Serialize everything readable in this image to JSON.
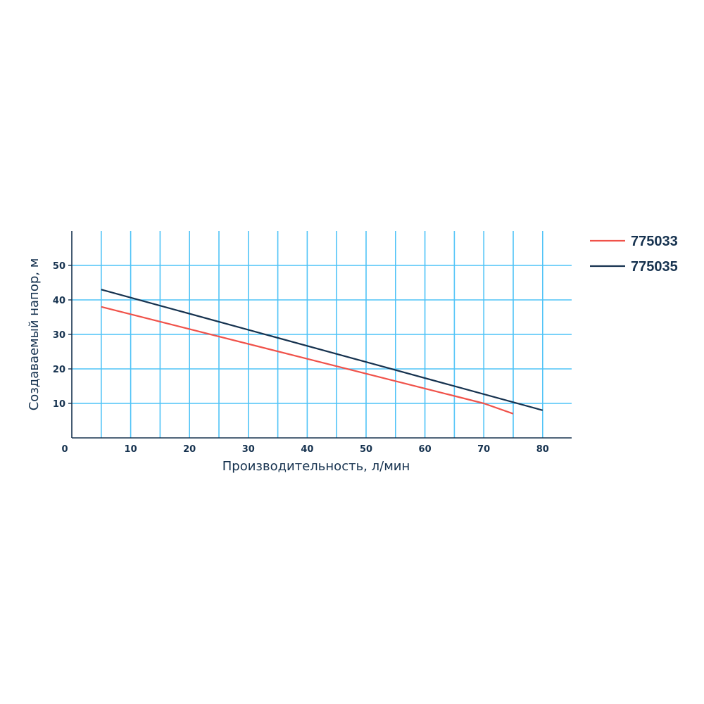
{
  "chart_data": {
    "type": "line",
    "xlabel": "Производительность, л/мин",
    "ylabel": "Создаваемый напор, м",
    "xlim": [
      0,
      85
    ],
    "ylim": [
      0,
      60
    ],
    "origin_label": "0",
    "x_ticks": [
      10,
      20,
      30,
      40,
      50,
      60,
      70,
      80
    ],
    "x_tick_labels": [
      "10",
      "20",
      "30",
      "40",
      "50",
      "60",
      "70",
      "80"
    ],
    "y_ticks": [
      10,
      20,
      30,
      40,
      50
    ],
    "y_tick_labels": [
      "10",
      "20",
      "30",
      "40",
      "50"
    ],
    "x_grid": [
      5,
      10,
      15,
      20,
      25,
      30,
      35,
      40,
      45,
      50,
      55,
      60,
      65,
      70,
      75,
      80
    ],
    "grid": true,
    "grid_color": "#4fc3f7",
    "axis_color": "#16324f",
    "legend_position": "top-right",
    "series": [
      {
        "name": "775033",
        "color": "#f0524a",
        "x": [
          5,
          70,
          75
        ],
        "y": [
          38,
          10,
          7
        ]
      },
      {
        "name": "775035",
        "color": "#16324f",
        "x": [
          5,
          80
        ],
        "y": [
          43,
          8
        ]
      }
    ]
  }
}
